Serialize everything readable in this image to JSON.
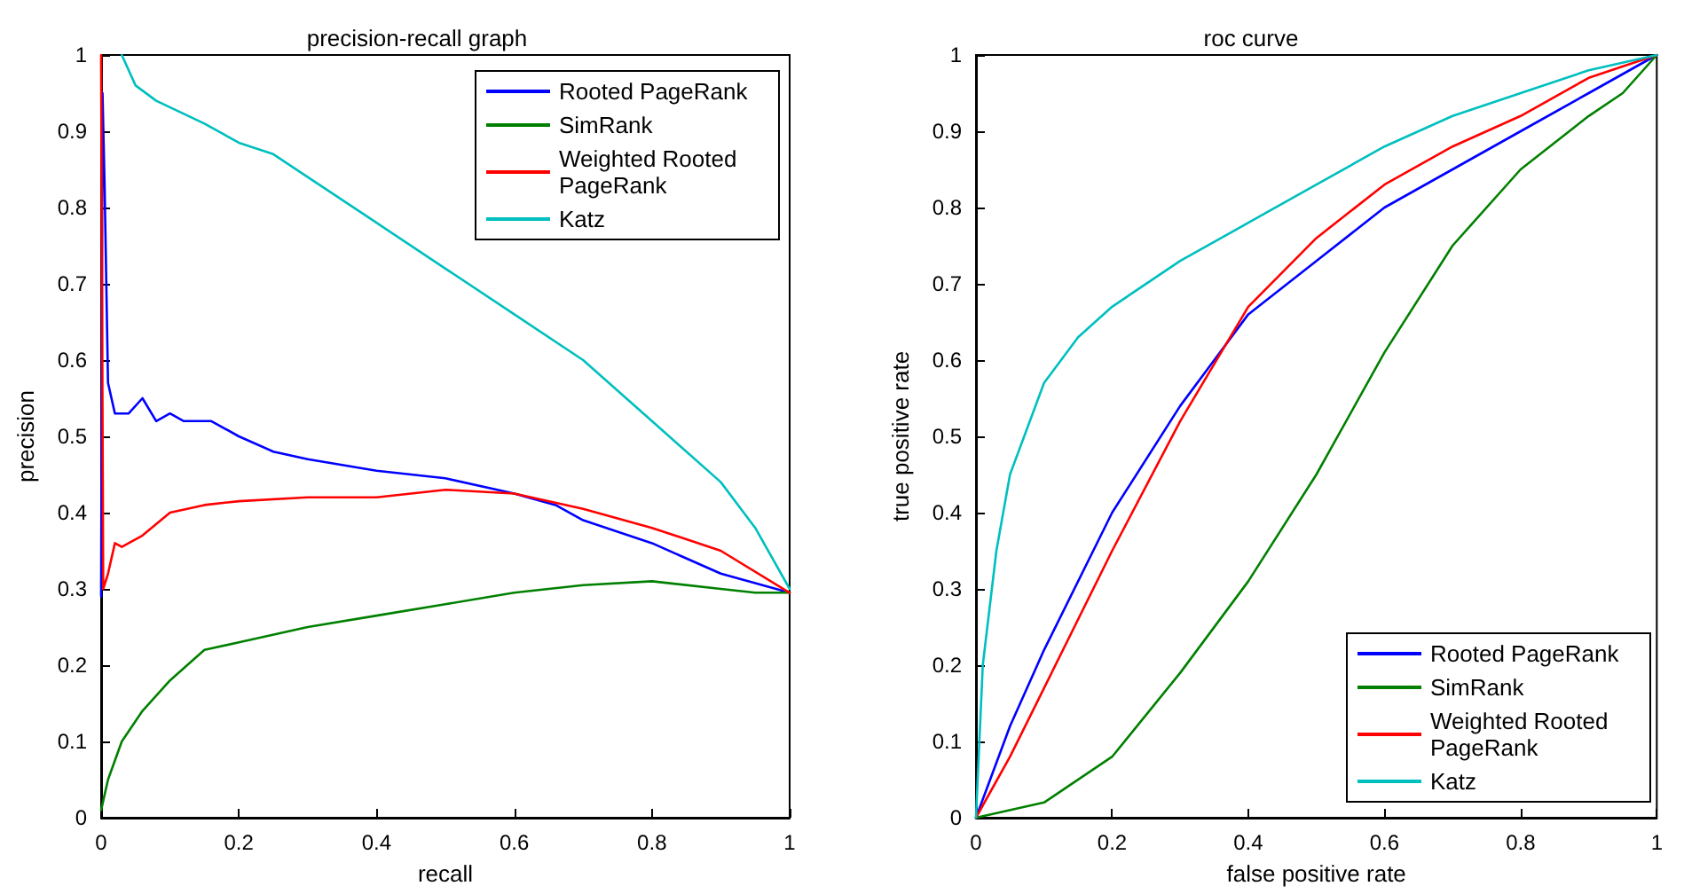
{
  "chart_data": [
    {
      "type": "line",
      "title": "precision-recall graph",
      "xlabel": "recall",
      "ylabel": "precision",
      "xlim": [
        0,
        1
      ],
      "ylim": [
        0,
        1
      ],
      "xticks": [
        0,
        0.2,
        0.4,
        0.6,
        0.8,
        1
      ],
      "yticks": [
        0,
        0.1,
        0.2,
        0.3,
        0.4,
        0.5,
        0.6,
        0.7,
        0.8,
        0.9,
        1
      ],
      "grid": false,
      "legend": "top right",
      "marker": "none",
      "line_style": "solid",
      "series": [
        {
          "name": "Rooted PageRank",
          "color": "#0000ff",
          "x": [
            0,
            0.002,
            0.005,
            0.01,
            0.02,
            0.04,
            0.06,
            0.08,
            0.1,
            0.12,
            0.16,
            0.2,
            0.25,
            0.3,
            0.4,
            0.5,
            0.6,
            0.66,
            0.7,
            0.8,
            0.9,
            1
          ],
          "values": [
            0.29,
            0.95,
            0.83,
            0.57,
            0.53,
            0.53,
            0.55,
            0.52,
            0.53,
            0.52,
            0.52,
            0.5,
            0.48,
            0.47,
            0.455,
            0.445,
            0.425,
            0.41,
            0.39,
            0.36,
            0.32,
            0.295
          ]
        },
        {
          "name": "SimRank",
          "color": "#008000",
          "x": [
            0,
            0.01,
            0.03,
            0.06,
            0.1,
            0.15,
            0.2,
            0.3,
            0.4,
            0.5,
            0.6,
            0.7,
            0.8,
            0.9,
            0.95,
            1
          ],
          "values": [
            0.01,
            0.05,
            0.1,
            0.14,
            0.18,
            0.22,
            0.23,
            0.25,
            0.265,
            0.28,
            0.295,
            0.305,
            0.31,
            0.3,
            0.295,
            0.295
          ]
        },
        {
          "name": "Weighted Rooted PageRank",
          "color": "#ff0000",
          "x": [
            0,
            0.003,
            0.01,
            0.02,
            0.03,
            0.06,
            0.1,
            0.15,
            0.2,
            0.3,
            0.4,
            0.5,
            0.6,
            0.7,
            0.8,
            0.9,
            1
          ],
          "values": [
            1,
            0.3,
            0.32,
            0.36,
            0.355,
            0.37,
            0.4,
            0.41,
            0.415,
            0.42,
            0.42,
            0.43,
            0.425,
            0.405,
            0.38,
            0.35,
            0.295
          ]
        },
        {
          "name": "Katz",
          "color": "#00bfbf",
          "x": [
            0.03,
            0.05,
            0.08,
            0.15,
            0.2,
            0.25,
            0.3,
            0.4,
            0.5,
            0.6,
            0.7,
            0.8,
            0.9,
            0.95,
            1
          ],
          "values": [
            1,
            0.96,
            0.94,
            0.91,
            0.885,
            0.87,
            0.84,
            0.78,
            0.72,
            0.66,
            0.6,
            0.52,
            0.44,
            0.38,
            0.3
          ]
        }
      ]
    },
    {
      "type": "line",
      "title": "roc curve",
      "xlabel": "false positive rate",
      "ylabel": "true positive rate",
      "xlim": [
        0,
        1
      ],
      "ylim": [
        0,
        1
      ],
      "xticks": [
        0,
        0.2,
        0.4,
        0.6,
        0.8,
        1
      ],
      "yticks": [
        0,
        0.1,
        0.2,
        0.3,
        0.4,
        0.5,
        0.6,
        0.7,
        0.8,
        0.9,
        1
      ],
      "grid": false,
      "legend": "bottom right",
      "marker": "none",
      "line_style": "solid",
      "series": [
        {
          "name": "Rooted PageRank",
          "color": "#0000ff",
          "x": [
            0,
            0.05,
            0.1,
            0.2,
            0.3,
            0.35,
            0.4,
            0.5,
            0.6,
            0.7,
            0.8,
            0.9,
            1
          ],
          "values": [
            0,
            0.12,
            0.22,
            0.4,
            0.54,
            0.6,
            0.66,
            0.73,
            0.8,
            0.85,
            0.9,
            0.95,
            1
          ]
        },
        {
          "name": "SimRank",
          "color": "#008000",
          "x": [
            0,
            0.1,
            0.2,
            0.3,
            0.4,
            0.5,
            0.6,
            0.7,
            0.8,
            0.9,
            0.95,
            1
          ],
          "values": [
            0,
            0.02,
            0.08,
            0.19,
            0.31,
            0.45,
            0.61,
            0.75,
            0.85,
            0.92,
            0.95,
            1
          ]
        },
        {
          "name": "Weighted Rooted PageRank",
          "color": "#ff0000",
          "x": [
            0,
            0.05,
            0.1,
            0.2,
            0.3,
            0.4,
            0.5,
            0.6,
            0.7,
            0.8,
            0.9,
            1
          ],
          "values": [
            0,
            0.08,
            0.17,
            0.35,
            0.52,
            0.67,
            0.76,
            0.83,
            0.88,
            0.92,
            0.97,
            1
          ]
        },
        {
          "name": "Katz",
          "color": "#00bfbf",
          "x": [
            0,
            0.01,
            0.03,
            0.05,
            0.1,
            0.15,
            0.2,
            0.3,
            0.4,
            0.5,
            0.6,
            0.7,
            0.8,
            0.9,
            1
          ],
          "values": [
            0,
            0.2,
            0.35,
            0.45,
            0.57,
            0.63,
            0.67,
            0.73,
            0.78,
            0.83,
            0.88,
            0.92,
            0.95,
            0.98,
            1
          ]
        }
      ]
    }
  ]
}
